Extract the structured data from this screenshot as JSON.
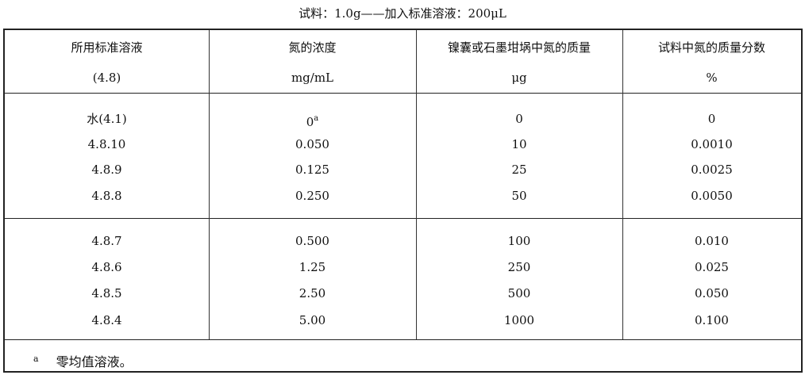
{
  "caption": "试料：1.0g——加入标准溶液：200μL",
  "headers": [
    {
      "line1": "所用标准溶液",
      "line2": "(4.8)"
    },
    {
      "line1": "氮的浓度",
      "line2": "mg/mL"
    },
    {
      "line1": "镍囊或石墨坩埚中氮的质量",
      "line2": "μg"
    },
    {
      "line1": "试料中氮的质量分数",
      "line2": "%"
    }
  ],
  "groups": [
    [
      [
        "水(4.1)",
        "0",
        "0",
        "0"
      ],
      [
        "4.8.10",
        "0.050",
        "10",
        "0.0010"
      ],
      [
        "4.8.9",
        "0.125",
        "25",
        "0.0025"
      ],
      [
        "4.8.8",
        "0.250",
        "50",
        "0.0050"
      ]
    ],
    [
      [
        "4.8.7",
        "0.500",
        "100",
        "0.010"
      ],
      [
        "4.8.6",
        "1.25",
        "250",
        "0.025"
      ],
      [
        "4.8.5",
        "2.50",
        "500",
        "0.050"
      ],
      [
        "4.8.4",
        "5.00",
        "1000",
        "0.100"
      ]
    ]
  ],
  "footnote_mark": "a",
  "footnote": "零均值溶液。"
}
